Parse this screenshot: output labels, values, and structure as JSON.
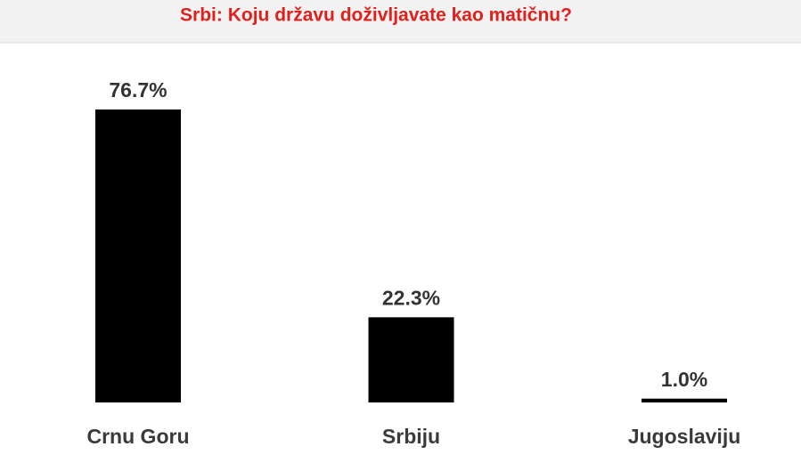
{
  "chart_data": {
    "type": "bar",
    "title": "Srbi: Koju državu doživljavate kao matičnu?",
    "categories": [
      "Crnu Goru",
      "Srbiju",
      "Jugoslaviju"
    ],
    "values": [
      76.7,
      22.3,
      1.0
    ],
    "value_labels": [
      "76.7%",
      "22.3%",
      "1.0%"
    ],
    "color": "#000000"
  }
}
